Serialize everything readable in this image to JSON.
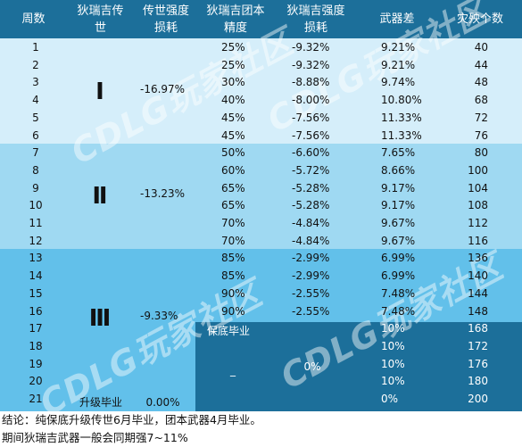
{
  "headers": [
    "周数",
    "狄瑞吉传\n世",
    "传世强度\n损耗",
    "狄瑞吉团本\n精度",
    "狄瑞吉强度\n损耗",
    "武器差",
    "灾殃个数"
  ],
  "rows": [
    {
      "week": "1",
      "acc": "25%",
      "loss": "-9.32%",
      "diff": "9.21%",
      "count": "40"
    },
    {
      "week": "2",
      "acc": "25%",
      "loss": "-9.32%",
      "diff": "9.21%",
      "count": "44"
    },
    {
      "week": "3",
      "acc": "30%",
      "loss": "-8.88%",
      "diff": "9.74%",
      "count": "48"
    },
    {
      "week": "4",
      "acc": "40%",
      "loss": "-8.00%",
      "diff": "10.80%",
      "count": "68"
    },
    {
      "week": "5",
      "acc": "45%",
      "loss": "-7.56%",
      "diff": "11.33%",
      "count": "72"
    },
    {
      "week": "6",
      "acc": "45%",
      "loss": "-7.56%",
      "diff": "11.33%",
      "count": "76"
    },
    {
      "week": "7",
      "acc": "50%",
      "loss": "-6.60%",
      "diff": "7.65%",
      "count": "80"
    },
    {
      "week": "8",
      "acc": "60%",
      "loss": "-5.72%",
      "diff": "8.66%",
      "count": "100"
    },
    {
      "week": "9",
      "acc": "65%",
      "loss": "-5.28%",
      "diff": "9.17%",
      "count": "104"
    },
    {
      "week": "10",
      "acc": "65%",
      "loss": "-5.28%",
      "diff": "9.17%",
      "count": "108"
    },
    {
      "week": "11",
      "acc": "70%",
      "loss": "-4.84%",
      "diff": "9.67%",
      "count": "112"
    },
    {
      "week": "12",
      "acc": "70%",
      "loss": "-4.84%",
      "diff": "9.67%",
      "count": "116"
    },
    {
      "week": "13",
      "acc": "85%",
      "loss": "-2.99%",
      "diff": "6.99%",
      "count": "136"
    },
    {
      "week": "14",
      "acc": "85%",
      "loss": "-2.99%",
      "diff": "6.99%",
      "count": "140"
    },
    {
      "week": "15",
      "acc": "90%",
      "loss": "-2.55%",
      "diff": "7.48%",
      "count": "144"
    },
    {
      "week": "16",
      "acc": "90%",
      "loss": "-2.55%",
      "diff": "7.48%",
      "count": "148"
    },
    {
      "week": "17",
      "acc": "",
      "loss": "",
      "diff": "10%",
      "count": "168"
    },
    {
      "week": "18",
      "acc": "",
      "loss": "",
      "diff": "10%",
      "count": "172"
    },
    {
      "week": "19",
      "acc": "",
      "loss": "",
      "diff": "10%",
      "count": "176"
    },
    {
      "week": "20",
      "acc": "",
      "loss": "",
      "diff": "10%",
      "count": "180"
    },
    {
      "week": "21",
      "acc": "",
      "loss": "",
      "diff": "0%",
      "count": "200"
    }
  ],
  "groups": [
    {
      "stage": "Ⅰ",
      "strength_loss": "-16.97%"
    },
    {
      "stage": "Ⅱ",
      "strength_loss": "-13.23%"
    },
    {
      "stage": "Ⅲ",
      "strength_loss": "-9.33%"
    }
  ],
  "upgrade_done": {
    "label": "升级毕业",
    "loss": "0.00%"
  },
  "guarantee": {
    "label": "保底毕业",
    "acc": "_",
    "loss": "0%"
  },
  "watermark": "CDLG玩家社区",
  "notes": [
    "结论：纯保底升级传世6月毕业，团本武器4月毕业。",
    "期间狄瑞吉武器一般会同期强7~11%"
  ],
  "colors": {
    "header": "#1c6f9a",
    "band1": "#d5eefa",
    "band2": "#9fd9f2",
    "band3": "#62c0ea"
  }
}
